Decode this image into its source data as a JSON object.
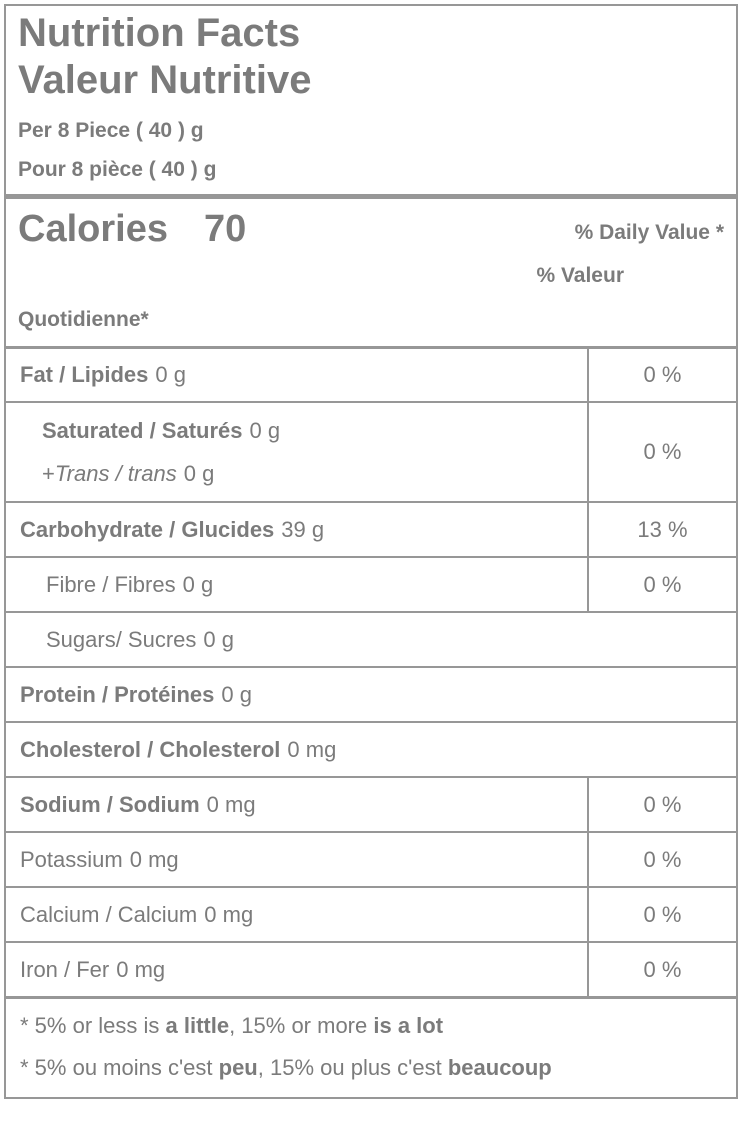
{
  "label": {
    "title_en": "Nutrition Facts",
    "title_fr": "Valeur Nutritive",
    "serving_en": "Per 8 Piece ( 40 ) g",
    "serving_fr": "Pour 8 pièce ( 40 ) g",
    "calories_label": "Calories",
    "calories_value": "70",
    "dv_header_en": "% Daily Value *",
    "dv_header_fr_line1": "% Valeur",
    "dv_header_fr_line2": "Quotidienne*",
    "rows": [
      {
        "name": "Fat / Lipides",
        "amount": "0 g",
        "dv": "0 %"
      },
      {
        "name": "Saturated / Saturés",
        "amount": "0 g",
        "sub_prefix": "+",
        "sub_name": "Trans / trans",
        "sub_amount": "0 g",
        "dv": "0 %"
      },
      {
        "name": "Carbohydrate / Glucides",
        "amount": "39 g",
        "dv": "13 %"
      },
      {
        "name": "Fibre / Fibres",
        "amount": "0 g",
        "dv": "0 %"
      },
      {
        "name": "Sugars/ Sucres",
        "amount": "0 g"
      },
      {
        "name": "Protein / Protéines",
        "amount": "0 g"
      },
      {
        "name": "Cholesterol / Cholesterol",
        "amount": "0 mg"
      },
      {
        "name": "Sodium / Sodium",
        "amount": "0 mg",
        "dv": "0 %"
      },
      {
        "name": "Potassium",
        "amount": "0 mg",
        "dv": "0 %"
      },
      {
        "name": "Calcium / Calcium",
        "amount": "0 mg",
        "dv": "0 %"
      },
      {
        "name": "Iron / Fer",
        "amount": "0 mg",
        "dv": "0 %"
      }
    ],
    "footnote_en": {
      "part1": "* 5% or less is ",
      "bold1": "a little",
      "part2": ", 15% or more ",
      "bold2": "is a lot"
    },
    "footnote_fr": {
      "part1": "* 5% ou moins c'est ",
      "bold1": "peu",
      "part2": ", 15% ou plus c'est ",
      "bold2": "beaucoup"
    }
  },
  "colors": {
    "text": "#7b7b7b",
    "border": "#979797",
    "background": "#ffffff"
  }
}
